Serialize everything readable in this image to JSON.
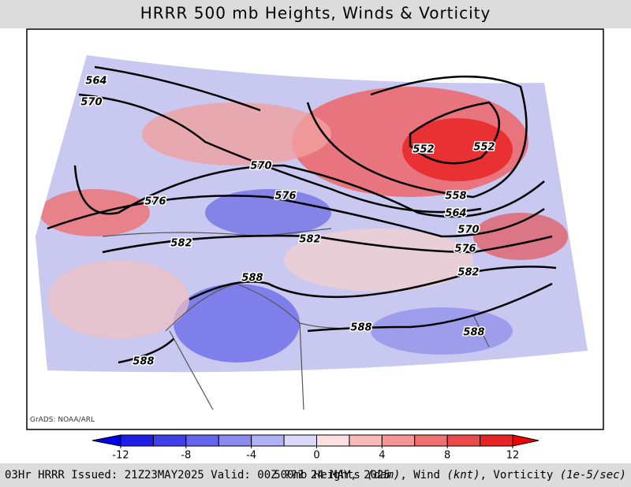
{
  "title": "HRRR 500 mb Heights, Winds & Vorticity",
  "credit": "GrADS: NOAA/ARL",
  "contour_labels": [
    564,
    570,
    552,
    552,
    570,
    576,
    576,
    558,
    564,
    570,
    582,
    582,
    576,
    582,
    588,
    588,
    588,
    588
  ],
  "colorbar": {
    "bounds": [
      -12,
      -10,
      -8,
      -6,
      -4,
      -2,
      0,
      2,
      4,
      6,
      8,
      10,
      12
    ],
    "colors": [
      "#0000f0",
      "#1e1ee8",
      "#4040ea",
      "#6464ec",
      "#8a8af0",
      "#b0b0f5",
      "#d8d8fb",
      "#ffe0e0",
      "#fbbaba",
      "#f59595",
      "#ef7070",
      "#ea4a4a",
      "#e82424",
      "#f00000"
    ],
    "ticks": [
      -12,
      -8,
      -4,
      0,
      4,
      8,
      12
    ]
  },
  "footer_left": "03Hr HRRR Issued: 21Z23MAY2025 Valid: 00Z ??? 24 MAY, 2025",
  "footer_right": [
    "500mb Heights ",
    "(dam)",
    ", Wind ",
    "(knt)",
    ", Vorticity ",
    "(1e-5/sec)"
  ]
}
